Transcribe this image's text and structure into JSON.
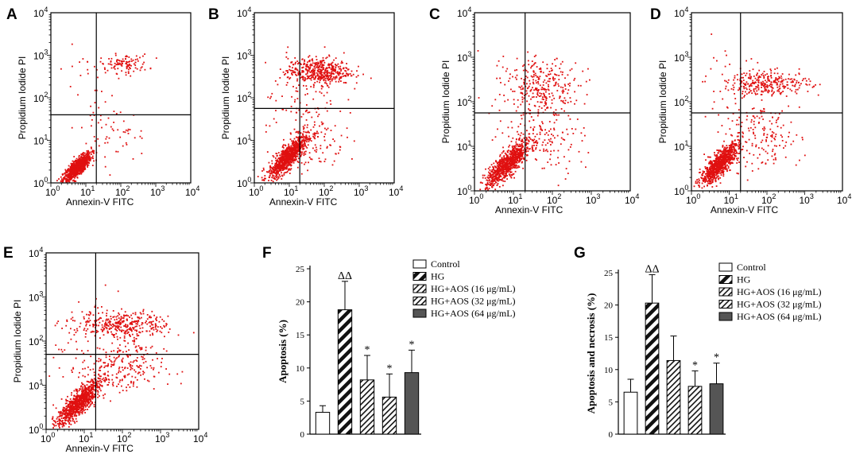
{
  "figure": {
    "background": "#ffffff",
    "dot_color": "#e01010"
  },
  "chart_data": [
    {
      "type": "scatter",
      "panel": "A",
      "xlabel": "Annexin-V FITC",
      "ylabel": "Propidium Iodide PI",
      "x_ticks": [
        {
          "b": "10",
          "e": "0"
        },
        {
          "b": "10",
          "e": "1"
        },
        {
          "b": "10",
          "e": "2"
        },
        {
          "b": "10",
          "e": "3"
        },
        {
          "b": "10",
          "e": "4"
        }
      ],
      "y_ticks": [
        {
          "b": "10",
          "e": "0"
        },
        {
          "b": "10",
          "e": "1"
        },
        {
          "b": "10",
          "e": "2"
        },
        {
          "b": "10",
          "e": "3"
        },
        {
          "b": "10",
          "e": "4"
        }
      ],
      "xlim": [
        0,
        4
      ],
      "ylim": [
        0,
        4
      ],
      "scale": "log10",
      "gate_x": 1.3,
      "gate_y": 1.6,
      "clusters": [
        {
          "name": "live",
          "n": 900,
          "cx": 0.75,
          "cy": 0.35,
          "sx": 0.2,
          "sy": 0.2,
          "tilt": 0.7
        },
        {
          "name": "late",
          "n": 110,
          "cx": 2.1,
          "cy": 2.8,
          "sx": 0.35,
          "sy": 0.11,
          "tilt": 0
        },
        {
          "name": "early",
          "n": 40,
          "cx": 1.9,
          "cy": 1.1,
          "sx": 0.4,
          "sy": 0.35,
          "tilt": 0
        },
        {
          "name": "scatter",
          "n": 40,
          "cx": 1.3,
          "cy": 1.8,
          "sx": 0.5,
          "sy": 0.7,
          "tilt": 0
        }
      ]
    },
    {
      "type": "scatter",
      "panel": "B",
      "xlabel": "Annexin-V FITC",
      "ylabel": "Propidium Iodide PI",
      "x_ticks": [
        {
          "b": "10",
          "e": "0"
        },
        {
          "b": "10",
          "e": "1"
        },
        {
          "b": "10",
          "e": "2"
        },
        {
          "b": "10",
          "e": "3"
        },
        {
          "b": "10",
          "e": "4"
        }
      ],
      "y_ticks": [
        {
          "b": "10",
          "e": "0"
        },
        {
          "b": "10",
          "e": "1"
        },
        {
          "b": "10",
          "e": "2"
        },
        {
          "b": "10",
          "e": "3"
        },
        {
          "b": "10",
          "e": "4"
        }
      ],
      "xlim": [
        0,
        4
      ],
      "ylim": [
        0,
        4
      ],
      "scale": "log10",
      "gate_x": 1.3,
      "gate_y": 1.75,
      "clusters": [
        {
          "name": "live",
          "n": 900,
          "cx": 0.95,
          "cy": 0.6,
          "sx": 0.28,
          "sy": 0.28,
          "tilt": 0.75
        },
        {
          "name": "late",
          "n": 450,
          "cx": 1.85,
          "cy": 2.62,
          "sx": 0.45,
          "sy": 0.16,
          "tilt": 0
        },
        {
          "name": "early",
          "n": 120,
          "cx": 1.7,
          "cy": 1.1,
          "sx": 0.45,
          "sy": 0.45,
          "tilt": 0
        },
        {
          "name": "scatter",
          "n": 80,
          "cx": 1.2,
          "cy": 2.0,
          "sx": 0.6,
          "sy": 0.6,
          "tilt": 0
        }
      ]
    },
    {
      "type": "scatter",
      "panel": "C",
      "xlabel": "Annexin-V FITC",
      "ylabel": "Propidium Iodide PI",
      "x_ticks": [
        {
          "b": "10",
          "e": "0"
        },
        {
          "b": "10",
          "e": "1"
        },
        {
          "b": "10",
          "e": "2"
        },
        {
          "b": "10",
          "e": "3"
        },
        {
          "b": "10",
          "e": "4"
        }
      ],
      "y_ticks": [
        {
          "b": "10",
          "e": "0"
        },
        {
          "b": "10",
          "e": "1"
        },
        {
          "b": "10",
          "e": "2"
        },
        {
          "b": "10",
          "e": "3"
        },
        {
          "b": "10",
          "e": "4"
        }
      ],
      "xlim": [
        0,
        4
      ],
      "ylim": [
        0,
        4
      ],
      "scale": "log10",
      "gate_x": 1.3,
      "gate_y": 1.75,
      "clusters": [
        {
          "name": "live",
          "n": 900,
          "cx": 0.85,
          "cy": 0.6,
          "sx": 0.28,
          "sy": 0.28,
          "tilt": 0.75
        },
        {
          "name": "late",
          "n": 250,
          "cx": 1.8,
          "cy": 2.35,
          "sx": 0.45,
          "sy": 0.28,
          "tilt": 0
        },
        {
          "name": "early",
          "n": 150,
          "cx": 1.8,
          "cy": 1.25,
          "sx": 0.5,
          "sy": 0.45,
          "tilt": 0
        },
        {
          "name": "scatter",
          "n": 70,
          "cx": 1.2,
          "cy": 2.2,
          "sx": 0.6,
          "sy": 0.6,
          "tilt": 0
        }
      ]
    },
    {
      "type": "scatter",
      "panel": "D",
      "xlabel": "Annexin-V FITC",
      "ylabel": "Propidium Iodide PI",
      "x_ticks": [
        {
          "b": "10",
          "e": "0"
        },
        {
          "b": "10",
          "e": "1"
        },
        {
          "b": "10",
          "e": "2"
        },
        {
          "b": "10",
          "e": "3"
        },
        {
          "b": "10",
          "e": "4"
        }
      ],
      "y_ticks": [
        {
          "b": "10",
          "e": "0"
        },
        {
          "b": "10",
          "e": "1"
        },
        {
          "b": "10",
          "e": "2"
        },
        {
          "b": "10",
          "e": "3"
        },
        {
          "b": "10",
          "e": "4"
        }
      ],
      "xlim": [
        0,
        4
      ],
      "ylim": [
        0,
        4
      ],
      "scale": "log10",
      "gate_x": 1.3,
      "gate_y": 1.75,
      "clusters": [
        {
          "name": "live",
          "n": 900,
          "cx": 0.75,
          "cy": 0.6,
          "sx": 0.25,
          "sy": 0.26,
          "tilt": 0.75
        },
        {
          "name": "late",
          "n": 280,
          "cx": 2.05,
          "cy": 2.42,
          "sx": 0.55,
          "sy": 0.13,
          "tilt": 0
        },
        {
          "name": "early",
          "n": 150,
          "cx": 1.9,
          "cy": 1.2,
          "sx": 0.5,
          "sy": 0.4,
          "tilt": 0
        },
        {
          "name": "scatter",
          "n": 70,
          "cx": 1.2,
          "cy": 2.1,
          "sx": 0.6,
          "sy": 0.6,
          "tilt": 0
        }
      ]
    },
    {
      "type": "scatter",
      "panel": "E",
      "xlabel": "Annexin-V FITC",
      "ylabel": "Propidium Iodide PI",
      "x_ticks": [
        {
          "b": "10",
          "e": "0"
        },
        {
          "b": "10",
          "e": "1"
        },
        {
          "b": "10",
          "e": "2"
        },
        {
          "b": "10",
          "e": "3"
        },
        {
          "b": "10",
          "e": "4"
        }
      ],
      "y_ticks": [
        {
          "b": "10",
          "e": "0"
        },
        {
          "b": "10",
          "e": "1"
        },
        {
          "b": "10",
          "e": "2"
        },
        {
          "b": "10",
          "e": "3"
        },
        {
          "b": "10",
          "e": "4"
        }
      ],
      "xlim": [
        0,
        4
      ],
      "ylim": [
        0,
        4
      ],
      "scale": "log10",
      "gate_x": 1.3,
      "gate_y": 1.7,
      "clusters": [
        {
          "name": "live",
          "n": 900,
          "cx": 0.85,
          "cy": 0.6,
          "sx": 0.28,
          "sy": 0.28,
          "tilt": 0.75
        },
        {
          "name": "late",
          "n": 330,
          "cx": 2.05,
          "cy": 2.38,
          "sx": 0.6,
          "sy": 0.14,
          "tilt": 0
        },
        {
          "name": "early",
          "n": 220,
          "cx": 2.0,
          "cy": 1.4,
          "sx": 0.55,
          "sy": 0.35,
          "tilt": 0
        },
        {
          "name": "scatter",
          "n": 80,
          "cx": 1.3,
          "cy": 2.0,
          "sx": 0.6,
          "sy": 0.6,
          "tilt": 0
        }
      ]
    },
    {
      "type": "bar",
      "panel": "F",
      "ylabel": "Apoptosis (%)",
      "ylim": [
        0,
        25
      ],
      "yticks": [
        0,
        5,
        10,
        15,
        20,
        25
      ],
      "categories": [
        "Control",
        "HG",
        "HG+AOS (16 μg/mL)",
        "HG+AOS (32 μg/mL)",
        "HG+AOS (64 μg/mL)"
      ],
      "fills": [
        "white",
        "bigstripe",
        "diag",
        "diag",
        "solid"
      ],
      "values": [
        3.3,
        18.8,
        8.2,
        5.6,
        9.3
      ],
      "errors": [
        1.0,
        4.3,
        3.7,
        3.5,
        3.4
      ],
      "markers": [
        "",
        "ΔΔ",
        "*",
        "*",
        "*"
      ]
    },
    {
      "type": "bar",
      "panel": "G",
      "ylabel": "Apoptosis and necrosis (%)",
      "ylim": [
        0,
        25
      ],
      "yticks": [
        0,
        5,
        10,
        15,
        20,
        25
      ],
      "categories": [
        "Control",
        "HG",
        "HG+AOS (16 μg/mL)",
        "HG+AOS (32 μg/mL)",
        "HG+AOS (64 μg/mL)"
      ],
      "fills": [
        "white",
        "bigstripe",
        "diag",
        "diag",
        "solid"
      ],
      "values": [
        6.5,
        20.3,
        11.4,
        7.4,
        7.8
      ],
      "errors": [
        2.0,
        4.4,
        3.8,
        2.4,
        3.2
      ],
      "markers": [
        "",
        "ΔΔ",
        "",
        "*",
        "*"
      ]
    }
  ]
}
